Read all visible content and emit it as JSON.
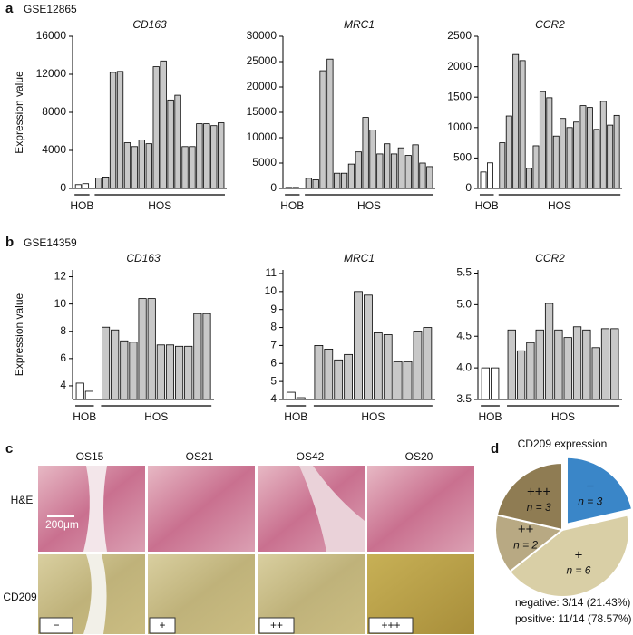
{
  "panels": [
    {
      "label": "a",
      "dataset": "GSE12865"
    },
    {
      "label": "b",
      "dataset": "GSE14359"
    },
    {
      "label": "c"
    },
    {
      "label": "d"
    }
  ],
  "micrographs": {
    "columns": [
      "OS15",
      "OS21",
      "OS42",
      "OS20"
    ],
    "rows": [
      "H&E",
      "CD209"
    ],
    "scale_bar": "200μm",
    "grades": [
      "−",
      "+",
      "++",
      "+++"
    ]
  },
  "chart_data": [
    {
      "type": "bar",
      "title": "CD163",
      "ylabel": "Expression value",
      "categories": [
        null,
        null,
        null,
        null,
        null,
        null,
        null,
        null,
        null,
        null,
        null,
        null,
        null,
        null,
        null,
        null,
        null,
        null,
        null,
        null
      ],
      "series": [
        {
          "name": "HOB",
          "color": "#ffffff",
          "values": [
            400,
            500,
            null,
            null,
            null,
            null,
            null,
            null,
            null,
            null,
            null,
            null,
            null,
            null,
            null,
            null,
            null,
            null,
            null,
            null
          ]
        },
        {
          "name": "HOS",
          "color": "#c8c8c8",
          "values": [
            null,
            null,
            1100,
            1200,
            12200,
            12300,
            4800,
            4400,
            5100,
            4700,
            12800,
            13400,
            9300,
            9800,
            4400,
            4400,
            6800,
            6800,
            6600,
            6900
          ]
        }
      ],
      "ylim": [
        0,
        16000
      ],
      "yticks": [
        0,
        4000,
        8000,
        12000,
        16000
      ]
    },
    {
      "type": "bar",
      "title": "MRC1",
      "categories": [
        null,
        null,
        null,
        null,
        null,
        null,
        null,
        null,
        null,
        null,
        null,
        null,
        null,
        null,
        null,
        null,
        null,
        null,
        null,
        null
      ],
      "series": [
        {
          "name": "HOB",
          "color": "#ffffff",
          "values": [
            200,
            200,
            null,
            null,
            null,
            null,
            null,
            null,
            null,
            null,
            null,
            null,
            null,
            null,
            null,
            null,
            null,
            null,
            null,
            null
          ]
        },
        {
          "name": "HOS",
          "color": "#c8c8c8",
          "values": [
            null,
            null,
            2000,
            1700,
            23200,
            25500,
            3000,
            3000,
            4800,
            7200,
            14000,
            11500,
            6800,
            8800,
            6800,
            8000,
            6500,
            8600,
            5000,
            4300
          ]
        }
      ],
      "ylim": [
        0,
        30000
      ],
      "yticks": [
        0,
        5000,
        10000,
        15000,
        20000,
        25000,
        30000
      ]
    },
    {
      "type": "bar",
      "title": "CCR2",
      "categories": [
        null,
        null,
        null,
        null,
        null,
        null,
        null,
        null,
        null,
        null,
        null,
        null,
        null,
        null,
        null,
        null,
        null,
        null,
        null,
        null
      ],
      "series": [
        {
          "name": "HOB",
          "color": "#ffffff",
          "values": [
            270,
            420,
            null,
            null,
            null,
            null,
            null,
            null,
            null,
            null,
            null,
            null,
            null,
            null,
            null,
            null,
            null,
            null,
            null,
            null
          ]
        },
        {
          "name": "HOS",
          "color": "#c8c8c8",
          "values": [
            null,
            null,
            750,
            1190,
            2200,
            2100,
            330,
            700,
            1590,
            1490,
            860,
            1150,
            1000,
            1090,
            1360,
            1330,
            970,
            1430,
            1040,
            1200
          ]
        }
      ],
      "ylim": [
        0,
        2500
      ],
      "yticks": [
        0,
        500,
        1000,
        1500,
        2000,
        2500
      ]
    },
    {
      "type": "bar",
      "title": "CD163",
      "ylabel": "Expression value",
      "categories": [
        null,
        null,
        null,
        null,
        null,
        null,
        null,
        null,
        null,
        null,
        null,
        null,
        null,
        null
      ],
      "series": [
        {
          "name": "HOB",
          "color": "#ffffff",
          "values": [
            4.2,
            3.6,
            null,
            null,
            null,
            null,
            null,
            null,
            null,
            null,
            null,
            null,
            null,
            null
          ]
        },
        {
          "name": "HOS",
          "color": "#c8c8c8",
          "values": [
            null,
            null,
            8.3,
            8.1,
            7.3,
            7.2,
            10.4,
            10.4,
            7.0,
            7.0,
            6.9,
            6.9,
            9.3,
            9.3
          ]
        }
      ],
      "ylim": [
        3,
        12.5
      ],
      "yticks": [
        4,
        6,
        8,
        10,
        12
      ]
    },
    {
      "type": "bar",
      "title": "MRC1",
      "categories": [
        null,
        null,
        null,
        null,
        null,
        null,
        null,
        null,
        null,
        null,
        null,
        null,
        null,
        null
      ],
      "series": [
        {
          "name": "HOB",
          "color": "#ffffff",
          "values": [
            4.4,
            4.1,
            null,
            null,
            null,
            null,
            null,
            null,
            null,
            null,
            null,
            null,
            null,
            null
          ]
        },
        {
          "name": "HOS",
          "color": "#c8c8c8",
          "values": [
            null,
            null,
            7.0,
            6.8,
            6.2,
            6.5,
            10.0,
            9.8,
            7.7,
            7.6,
            6.1,
            6.1,
            7.8,
            8.0
          ]
        }
      ],
      "ylim": [
        4,
        11.2
      ],
      "yticks": [
        4,
        5,
        6,
        7,
        8,
        9,
        10,
        11
      ]
    },
    {
      "type": "bar",
      "title": "CCR2",
      "categories": [
        null,
        null,
        null,
        null,
        null,
        null,
        null,
        null,
        null,
        null,
        null,
        null,
        null,
        null
      ],
      "series": [
        {
          "name": "HOB",
          "color": "#ffffff",
          "values": [
            4.0,
            4.0,
            null,
            null,
            null,
            null,
            null,
            null,
            null,
            null,
            null,
            null,
            null,
            null
          ]
        },
        {
          "name": "HOS",
          "color": "#c8c8c8",
          "values": [
            null,
            null,
            4.6,
            4.27,
            4.4,
            4.6,
            5.02,
            4.6,
            4.48,
            4.65,
            4.6,
            4.32,
            4.62,
            4.62
          ]
        }
      ],
      "ylim": [
        3.5,
        5.55
      ],
      "yticks": [
        3.5,
        {
          "value": 4,
          "label": "4.0"
        },
        4.5,
        {
          "value": 5,
          "label": "5.0"
        },
        5.5
      ]
    },
    {
      "type": "pie",
      "title": "CD209 expression",
      "categories": [
        "−",
        "+",
        "++",
        "+++"
      ],
      "values": [
        3,
        6,
        2,
        3
      ],
      "value_labels": [
        "n = 3",
        "n = 6",
        "n = 2",
        "n = 3"
      ],
      "colors": [
        "#3a86c8",
        "#d9cfa6",
        "#b8a983",
        "#8f7c53"
      ],
      "explode": [
        true,
        false,
        false,
        false
      ],
      "annotations": [
        "negative: 3/14 (21.43%)",
        "positive: 11/14 (78.57%)"
      ]
    }
  ]
}
